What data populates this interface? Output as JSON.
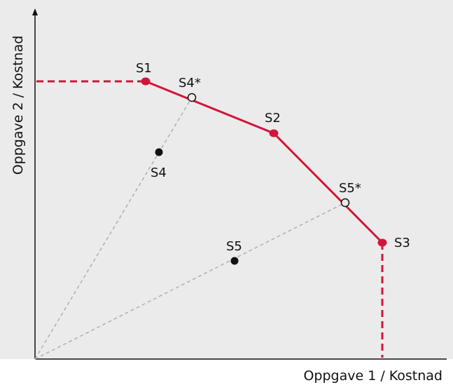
{
  "axes": {
    "x_title": "Oppgave 1 / Kostnad",
    "y_title": "Oppgave 2 / Kostnad"
  },
  "colors": {
    "plot_bg": "#ebebeb",
    "frontier": "#d4143a",
    "ray": "#b0b0b0",
    "axis": "#111111",
    "inefficient_point": "#111111"
  },
  "frontier_points": [
    {
      "id": "S1",
      "label": "S1"
    },
    {
      "id": "S2",
      "label": "S2"
    },
    {
      "id": "S3",
      "label": "S3"
    }
  ],
  "projected_points": [
    {
      "id": "S4*",
      "label": "S4*"
    },
    {
      "id": "S5*",
      "label": "S5*"
    }
  ],
  "units": [
    {
      "id": "S4",
      "label": "S4"
    },
    {
      "id": "S5",
      "label": "S5"
    }
  ]
}
